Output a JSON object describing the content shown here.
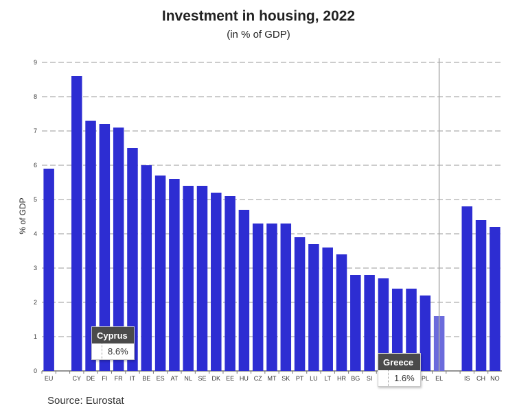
{
  "header": {
    "title": "Investment in housing, 2022",
    "subtitle": "(in % of GDP)"
  },
  "footer": {
    "source": "Source: Eurostat"
  },
  "colors": {
    "bar": "#2d2dd2",
    "highlight": "#6b6bdc",
    "grid": "#999999",
    "cursor": "#aaaaaa"
  },
  "chart_data": {
    "type": "bar",
    "title": "Investment in housing, 2022",
    "subtitle": "(in % of GDP)",
    "xlabel": "",
    "ylabel": "% of GDP",
    "ylim": [
      0,
      9
    ],
    "yticks": [
      0,
      1,
      2,
      3,
      4,
      5,
      6,
      7,
      8,
      9
    ],
    "grid": true,
    "categories": [
      "EU",
      "",
      "CY",
      "DE",
      "FI",
      "FR",
      "IT",
      "BE",
      "ES",
      "AT",
      "NL",
      "SE",
      "DK",
      "EE",
      "HU",
      "CZ",
      "MT",
      "SK",
      "PT",
      "LU",
      "LT",
      "HR",
      "BG",
      "SI",
      "",
      "",
      "",
      "PL",
      "EL",
      "",
      "IS",
      "CH",
      "NO"
    ],
    "values": [
      5.9,
      null,
      8.6,
      7.3,
      7.2,
      7.1,
      6.5,
      6.0,
      5.7,
      5.6,
      5.4,
      5.4,
      5.2,
      5.1,
      4.7,
      4.3,
      4.3,
      4.3,
      3.9,
      3.7,
      3.6,
      3.4,
      2.8,
      2.8,
      2.7,
      2.4,
      2.4,
      2.2,
      1.6,
      null,
      4.8,
      4.4,
      4.2
    ],
    "highlighted": "EL"
  },
  "tooltips": [
    {
      "name": "Cyprus",
      "value": "8.6%"
    },
    {
      "name": "Greece",
      "value": "1.6%"
    }
  ]
}
